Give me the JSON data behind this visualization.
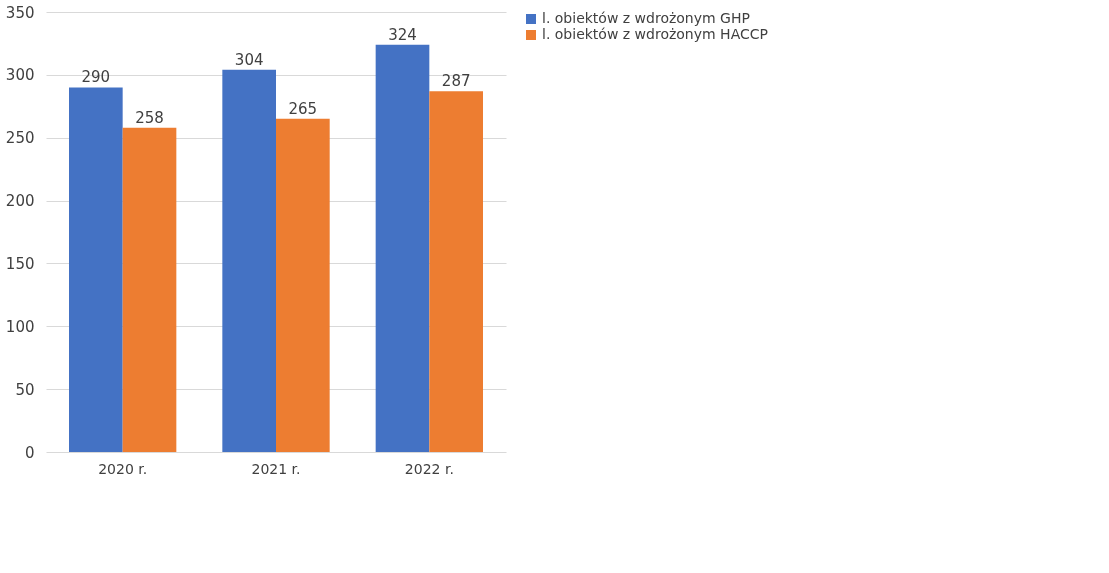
{
  "chart_data": {
    "type": "bar",
    "categories": [
      "2020 r.",
      "2021 r.",
      "2022 r."
    ],
    "series": [
      {
        "name": "l. obiektów z wdrożonym GHP",
        "color": "#4472c4",
        "values": [
          290,
          304,
          324
        ]
      },
      {
        "name": "l. obiektów z wdrożonym HACCP",
        "color": "#ed7d31",
        "values": [
          258,
          265,
          287
        ]
      }
    ],
    "ylim": [
      0,
      350
    ],
    "yticks": [
      0,
      50,
      100,
      150,
      200,
      250,
      300,
      350
    ],
    "grid": "y",
    "legend": "right",
    "data_labels": true
  }
}
